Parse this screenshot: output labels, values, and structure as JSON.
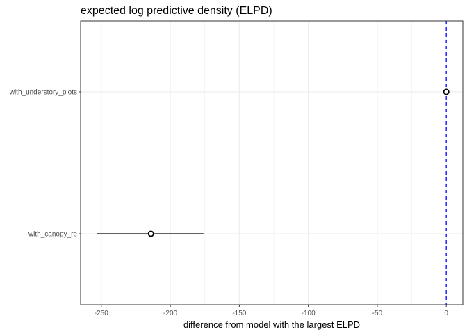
{
  "chart_data": {
    "type": "scatter",
    "title": "expected log predictive density (ELPD)",
    "xlabel": "difference from model with the largest ELPD",
    "ylabel": "",
    "xlim": [
      -265,
      12
    ],
    "x_ticks": [
      -250,
      -200,
      -150,
      -100,
      -50,
      0
    ],
    "x_tick_labels": [
      "-250",
      "-200",
      "-150",
      "-100",
      "-50",
      "0"
    ],
    "categories": [
      "with_understory_plots",
      "with_canopy_re"
    ],
    "points": [
      {
        "model": "with_understory_plots",
        "elpd_diff": 0,
        "lower": 0,
        "upper": 0
      },
      {
        "model": "with_canopy_re",
        "elpd_diff": -214,
        "lower": -253,
        "upper": -176
      }
    ],
    "reference_line": {
      "x": 0,
      "style": "dashed",
      "color": "#0000ff"
    },
    "grid": true,
    "colors": {
      "point": "#000000",
      "interval": "#000000",
      "grid": "#ebebeb",
      "panel_border": "#333333"
    }
  }
}
